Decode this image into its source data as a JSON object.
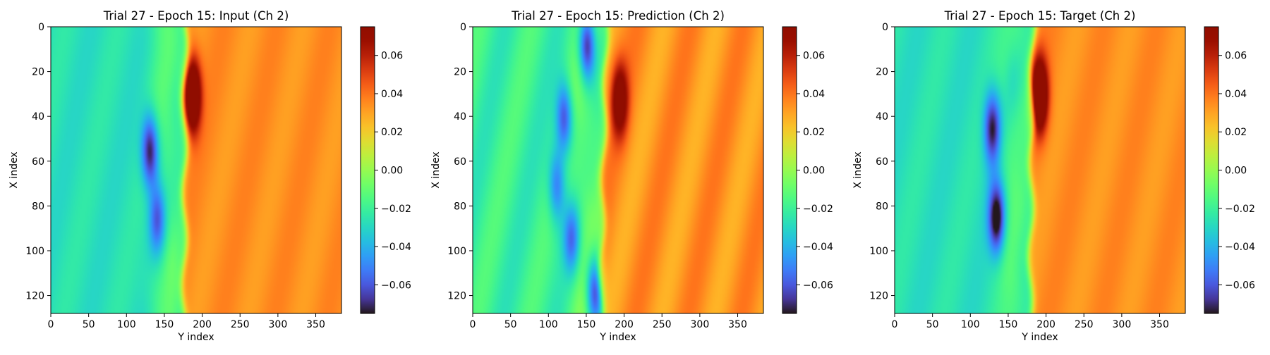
{
  "colormap": "turbo",
  "chart_data": [
    {
      "type": "heatmap",
      "title": "Trial 27 - Epoch 15: Input (Ch 2)",
      "xlabel": "Y index",
      "ylabel": "X index",
      "xlim": [
        0,
        384
      ],
      "ylim": [
        128,
        0
      ],
      "xticks": [
        0,
        50,
        100,
        150,
        200,
        250,
        300,
        350
      ],
      "yticks": [
        0,
        20,
        40,
        60,
        80,
        100,
        120
      ],
      "colorbar": {
        "vmin": -0.075,
        "vmax": 0.075,
        "ticks": [
          0.06,
          0.04,
          0.02,
          0.0,
          -0.02,
          -0.04,
          -0.06
        ],
        "tick_labels": [
          "0.06",
          "0.04",
          "0.02",
          "0.00",
          "−0.02",
          "−0.04",
          "−0.06"
        ]
      },
      "field": {
        "background_left": -0.027,
        "background_right": 0.034,
        "front_y_top": 177,
        "front_y_bottom": 175,
        "peaks": [
          {
            "y": 186,
            "x": 30,
            "value": 0.068
          },
          {
            "y": 130,
            "x": 55,
            "value": -0.062
          },
          {
            "y": 140,
            "x": 85,
            "value": -0.05
          },
          {
            "y": 160,
            "x": 110,
            "value": -0.005
          }
        ]
      }
    },
    {
      "type": "heatmap",
      "title": "Trial 27 - Epoch 15: Prediction (Ch 2)",
      "xlabel": "Y index",
      "ylabel": "X index",
      "xlim": [
        0,
        384
      ],
      "ylim": [
        128,
        0
      ],
      "xticks": [
        0,
        50,
        100,
        150,
        200,
        250,
        300,
        350
      ],
      "yticks": [
        0,
        20,
        40,
        60,
        80,
        100,
        120
      ],
      "colorbar": {
        "vmin": -0.075,
        "vmax": 0.075,
        "ticks": [
          0.06,
          0.04,
          0.02,
          0.0,
          -0.02,
          -0.04,
          -0.06
        ],
        "tick_labels": [
          "0.06",
          "0.04",
          "0.02",
          "0.00",
          "−0.02",
          "−0.04",
          "−0.06"
        ]
      },
      "field": {
        "background_left": -0.02,
        "background_right": 0.033,
        "front_y_top": 175,
        "front_y_bottom": 168,
        "peaks": [
          {
            "y": 193,
            "x": 32,
            "value": 0.045
          },
          {
            "y": 150,
            "x": 8,
            "value": -0.07
          },
          {
            "y": 120,
            "x": 40,
            "value": -0.055
          },
          {
            "y": 110,
            "x": 70,
            "value": -0.045
          },
          {
            "y": 130,
            "x": 95,
            "value": -0.045
          },
          {
            "y": 160,
            "x": 118,
            "value": -0.06
          }
        ]
      }
    },
    {
      "type": "heatmap",
      "title": "Trial 27 - Epoch 15: Target (Ch 2)",
      "xlabel": "Y index",
      "ylabel": "X index",
      "xlim": [
        0,
        384
      ],
      "ylim": [
        128,
        0
      ],
      "xticks": [
        0,
        50,
        100,
        150,
        200,
        250,
        300,
        350
      ],
      "yticks": [
        0,
        20,
        40,
        60,
        80,
        100,
        120
      ],
      "colorbar": {
        "vmin": -0.075,
        "vmax": 0.075,
        "ticks": [
          0.06,
          0.04,
          0.02,
          0.0,
          -0.02,
          -0.04,
          -0.06
        ],
        "tick_labels": [
          "0.06",
          "0.04",
          "0.02",
          "0.00",
          "−0.02",
          "−0.04",
          "−0.06"
        ]
      },
      "field": {
        "background_left": -0.027,
        "background_right": 0.034,
        "front_y_top": 182,
        "front_y_bottom": 178,
        "peaks": [
          {
            "y": 190,
            "x": 30,
            "value": 0.07
          },
          {
            "y": 128,
            "x": 45,
            "value": -0.06
          },
          {
            "y": 134,
            "x": 85,
            "value": -0.07
          },
          {
            "y": 155,
            "x": 25,
            "value": -0.02
          }
        ]
      }
    }
  ]
}
